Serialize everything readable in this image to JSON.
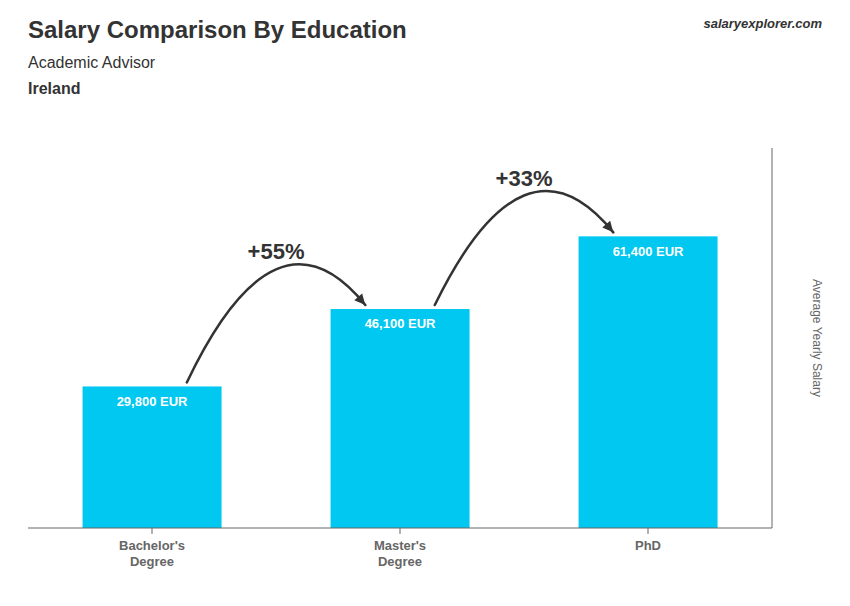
{
  "chart_data": {
    "type": "bar",
    "title": "Salary Comparison By Education",
    "subtitle": "Academic Advisor",
    "categories": [
      "Bachelor's\nDegree",
      "Master's\nDegree",
      "PhD"
    ],
    "values": [
      29800,
      46100,
      61400
    ],
    "value_labels": [
      "29,800 EUR",
      "46,100 EUR",
      "61,400 EUR"
    ],
    "color": "#00c8f0",
    "ylabel": "Average Yearly Salary",
    "ylim": [
      0,
      80000
    ],
    "tick_labels": "x",
    "grid": false,
    "annotations": [
      {
        "text": "salaryexplorer.com"
      },
      {
        "text": "Ireland"
      },
      {
        "text": "+55%",
        "from": 0,
        "to": 1
      },
      {
        "text": "+33%",
        "from": 1,
        "to": 2
      }
    ]
  }
}
